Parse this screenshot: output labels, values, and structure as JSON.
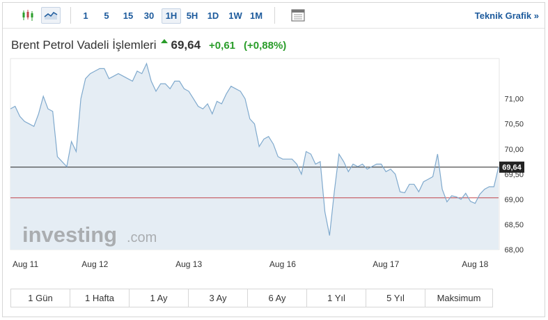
{
  "toolbar": {
    "candles_icon": "candlestick-chart-icon",
    "line_icon": "line-chart-icon",
    "timeframes": [
      "1",
      "5",
      "15",
      "30",
      "1H",
      "5H",
      "1D",
      "1W",
      "1M"
    ],
    "active_timeframe": "1H",
    "layout_icon": "window-layout-icon",
    "technical_link": "Teknik Grafik »"
  },
  "header": {
    "name": "Brent Petrol Vadeli İşlemleri",
    "price": "69,64",
    "change": "+0,61",
    "change_pct": "(+0,88%)",
    "up_color": "#2a9d2a"
  },
  "watermark": {
    "brand": "investing",
    "suffix": ".com"
  },
  "periods": [
    "1 Gün",
    "1 Hafta",
    "1 Ay",
    "3 Ay",
    "6 Ay",
    "1 Yıl",
    "5 Yıl",
    "Maksimum"
  ],
  "chart_data": {
    "type": "area",
    "title": "",
    "xlabel": "",
    "ylabel": "",
    "ylim": [
      68.0,
      71.8
    ],
    "yticks": [
      "71,00",
      "70,50",
      "70,00",
      "69,50",
      "69,00",
      "68,50",
      "68,00"
    ],
    "ytick_values": [
      71.0,
      70.5,
      70.0,
      69.5,
      69.0,
      68.5,
      68.0
    ],
    "xtick_labels": [
      "Aug 11",
      "Aug 12",
      "Aug 13",
      "Aug 16",
      "Aug 17",
      "Aug 18"
    ],
    "xtick_index": [
      0,
      18,
      38,
      58,
      80,
      99
    ],
    "current_price": 69.64,
    "current_price_label": "69,64",
    "reference_price": 69.03,
    "line_color": "#7fa9cd",
    "fill_color": "#e5edf4",
    "current_line_color": "#222222",
    "reference_line_color": "#c0444a",
    "grid": false,
    "series": [
      {
        "values": [
          70.8,
          70.85,
          70.65,
          70.55,
          70.5,
          70.45,
          70.7,
          71.05,
          70.8,
          70.75,
          69.85,
          69.75,
          69.65,
          70.15,
          69.95,
          71.0,
          71.4,
          71.5,
          71.55,
          71.6,
          71.6,
          71.4,
          71.45,
          71.5,
          71.45,
          71.4,
          71.35,
          71.55,
          71.5,
          71.7,
          71.35,
          71.15,
          71.3,
          71.3,
          71.2,
          71.35,
          71.35,
          71.2,
          71.15,
          71.0,
          70.85,
          70.8,
          70.9,
          70.7,
          70.95,
          70.9,
          71.1,
          71.25,
          71.2,
          71.15,
          71.0,
          70.6,
          70.5,
          70.05,
          70.2,
          70.25,
          70.1,
          69.85,
          69.8,
          69.8,
          69.8,
          69.7,
          69.5,
          69.95,
          69.9,
          69.7,
          69.75,
          68.75,
          68.28,
          69.15,
          69.9,
          69.75,
          69.55,
          69.7,
          69.65,
          69.7,
          69.6,
          69.65,
          69.7,
          69.7,
          69.55,
          69.6,
          69.5,
          69.15,
          69.13,
          69.3,
          69.3,
          69.15,
          69.35,
          69.4,
          69.45,
          69.9,
          69.2,
          68.95,
          69.07,
          69.05,
          69.0,
          69.12,
          68.96,
          68.92,
          69.1,
          69.2,
          69.25,
          69.25,
          69.64
        ]
      }
    ]
  }
}
